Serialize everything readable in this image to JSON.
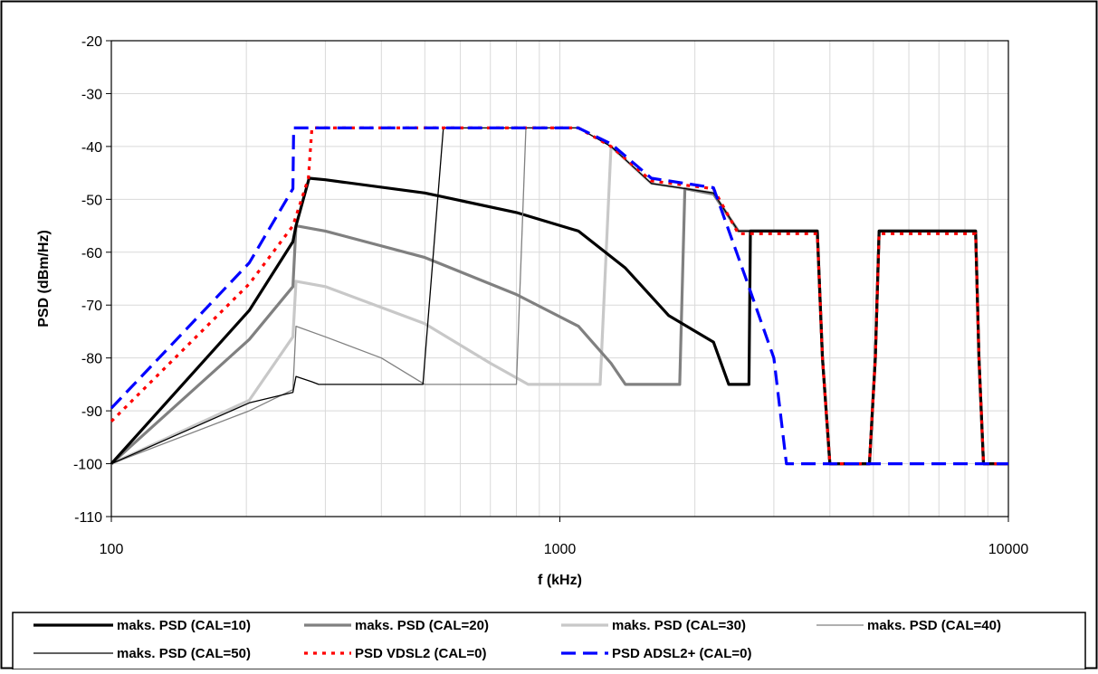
{
  "chart_data": {
    "type": "line",
    "xlabel": "f (kHz)",
    "ylabel": "PSD (dBm/Hz)",
    "xscale": "log",
    "xlim": [
      100,
      10000
    ],
    "ylim": [
      -110,
      -20
    ],
    "xticks": [
      100,
      1000,
      10000
    ],
    "xtick_labels": [
      "100",
      "1000",
      "10000"
    ],
    "yticks": [
      -20,
      -30,
      -40,
      -50,
      -60,
      -70,
      -80,
      -90,
      -100,
      -110
    ],
    "ytick_labels": [
      "-20",
      "-30",
      "-40",
      "-50",
      "-60",
      "-70",
      "-80",
      "-90",
      "-100",
      "-110"
    ],
    "grid": true,
    "legend_position": "bottom",
    "series": [
      {
        "name": "maks. PSD (CAL=10)",
        "color": "#000000",
        "width": 3.2,
        "dash": "",
        "points": [
          [
            100,
            -100
          ],
          [
            203,
            -71
          ],
          [
            254,
            -58
          ],
          [
            258,
            -55
          ],
          [
            276,
            -46
          ],
          [
            300,
            -46.3
          ],
          [
            500,
            -48.8
          ],
          [
            800,
            -52.5
          ],
          [
            1100,
            -56
          ],
          [
            1400,
            -63
          ],
          [
            1750,
            -72
          ],
          [
            2200,
            -77
          ],
          [
            2380,
            -85
          ],
          [
            2640,
            -85
          ],
          [
            2660,
            -56
          ],
          [
            3750,
            -56
          ],
          [
            3850,
            -80
          ],
          [
            4000,
            -100
          ],
          [
            4900,
            -100
          ],
          [
            5050,
            -80
          ],
          [
            5150,
            -56
          ],
          [
            8450,
            -56
          ],
          [
            8600,
            -80
          ],
          [
            8800,
            -100
          ],
          [
            10000,
            -100
          ]
        ]
      },
      {
        "name": "maks. PSD (CAL=20)",
        "color": "#808080",
        "width": 3.2,
        "dash": "",
        "points": [
          [
            100,
            -100
          ],
          [
            203,
            -76.5
          ],
          [
            254,
            -66.5
          ],
          [
            258,
            -55
          ],
          [
            300,
            -56
          ],
          [
            500,
            -61
          ],
          [
            800,
            -68
          ],
          [
            1100,
            -74
          ],
          [
            1300,
            -81
          ],
          [
            1400,
            -85
          ],
          [
            1850,
            -85
          ],
          [
            1900,
            -48
          ],
          [
            2200,
            -49
          ],
          [
            2500,
            -56
          ],
          [
            3750,
            -56
          ],
          [
            3850,
            -80
          ],
          [
            4000,
            -100
          ],
          [
            4900,
            -100
          ],
          [
            5050,
            -80
          ],
          [
            5150,
            -56
          ],
          [
            8450,
            -56
          ],
          [
            8600,
            -80
          ],
          [
            8800,
            -100
          ],
          [
            10000,
            -100
          ]
        ]
      },
      {
        "name": "maks. PSD (CAL=30)",
        "color": "#c8c8c8",
        "width": 3.2,
        "dash": "",
        "points": [
          [
            100,
            -100
          ],
          [
            203,
            -88
          ],
          [
            254,
            -76
          ],
          [
            258,
            -65.5
          ],
          [
            300,
            -66.5
          ],
          [
            500,
            -73.5
          ],
          [
            700,
            -81
          ],
          [
            850,
            -85
          ],
          [
            1230,
            -85
          ],
          [
            1300,
            -40
          ],
          [
            1600,
            -47
          ],
          [
            2200,
            -48.8
          ],
          [
            2500,
            -56
          ],
          [
            3750,
            -56
          ],
          [
            3850,
            -80
          ],
          [
            4000,
            -100
          ],
          [
            4900,
            -100
          ],
          [
            5050,
            -80
          ],
          [
            5150,
            -56
          ],
          [
            8450,
            -56
          ],
          [
            8600,
            -80
          ],
          [
            8800,
            -100
          ],
          [
            10000,
            -100
          ]
        ]
      },
      {
        "name": "maks. PSD (CAL=40)",
        "color": "#808080",
        "width": 1.3,
        "dash": "",
        "points": [
          [
            100,
            -100
          ],
          [
            203,
            -90
          ],
          [
            254,
            -86
          ],
          [
            258,
            -74
          ],
          [
            300,
            -76
          ],
          [
            400,
            -80
          ],
          [
            500,
            -85
          ],
          [
            800,
            -85
          ],
          [
            840,
            -36.5
          ],
          [
            1100,
            -36.5
          ],
          [
            1300,
            -40
          ],
          [
            1600,
            -47
          ],
          [
            2200,
            -48.8
          ],
          [
            2500,
            -56
          ],
          [
            3750,
            -56
          ],
          [
            3850,
            -80
          ],
          [
            4000,
            -100
          ],
          [
            4900,
            -100
          ],
          [
            5050,
            -80
          ],
          [
            5150,
            -56
          ],
          [
            8450,
            -56
          ],
          [
            8600,
            -80
          ],
          [
            8800,
            -100
          ],
          [
            10000,
            -100
          ]
        ]
      },
      {
        "name": "maks. PSD (CAL=50)",
        "color": "#000000",
        "width": 1.3,
        "dash": "",
        "points": [
          [
            100,
            -100
          ],
          [
            203,
            -88.5
          ],
          [
            254,
            -86.5
          ],
          [
            258,
            -83.5
          ],
          [
            280,
            -84.5
          ],
          [
            290,
            -85
          ],
          [
            495,
            -85
          ],
          [
            550,
            -36.5
          ],
          [
            1100,
            -36.5
          ],
          [
            1300,
            -40
          ],
          [
            1600,
            -47
          ],
          [
            2200,
            -48.8
          ],
          [
            2500,
            -56
          ],
          [
            3750,
            -56
          ],
          [
            3850,
            -80
          ],
          [
            4000,
            -100
          ],
          [
            4900,
            -100
          ],
          [
            5050,
            -80
          ],
          [
            5150,
            -56
          ],
          [
            8450,
            -56
          ],
          [
            8600,
            -80
          ],
          [
            8800,
            -100
          ],
          [
            10000,
            -100
          ]
        ]
      },
      {
        "name": "PSD VDSL2 (CAL=0)",
        "color": "#ff0000",
        "width": 3.2,
        "dash": "4 6",
        "points": [
          [
            100,
            -92
          ],
          [
            203,
            -66
          ],
          [
            254,
            -55
          ],
          [
            275,
            -46
          ],
          [
            280,
            -36.5
          ],
          [
            1100,
            -36.5
          ],
          [
            1300,
            -40
          ],
          [
            1600,
            -46.5
          ],
          [
            2200,
            -48
          ],
          [
            2500,
            -56.5
          ],
          [
            3750,
            -56.5
          ],
          [
            3850,
            -80
          ],
          [
            4000,
            -100
          ],
          [
            4900,
            -100
          ],
          [
            5050,
            -80
          ],
          [
            5150,
            -56.5
          ],
          [
            8450,
            -56.5
          ],
          [
            8600,
            -80
          ],
          [
            8800,
            -100
          ],
          [
            10000,
            -100
          ]
        ]
      },
      {
        "name": "PSD ADSL2+ (CAL=0)",
        "color": "#0000ff",
        "width": 3.2,
        "dash": "16 8",
        "points": [
          [
            100,
            -89.5
          ],
          [
            203,
            -62
          ],
          [
            254,
            -48
          ],
          [
            255,
            -36.5
          ],
          [
            1100,
            -36.5
          ],
          [
            1300,
            -39.5
          ],
          [
            1600,
            -46
          ],
          [
            2200,
            -47.8
          ],
          [
            2600,
            -65
          ],
          [
            3000,
            -80
          ],
          [
            3200,
            -100
          ],
          [
            10000,
            -100
          ]
        ]
      }
    ]
  }
}
